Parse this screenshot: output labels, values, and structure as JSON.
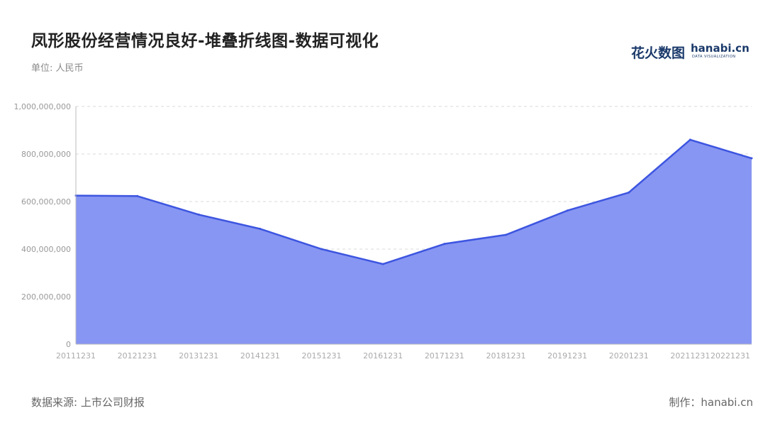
{
  "title": "凤形股份经营情况良好-堆叠折线图-数据可视化",
  "unit_label": "单位: 人民币",
  "source_label": "数据来源: 上市公司财报",
  "maker_label": "制作：hanabi.cn",
  "logo": {
    "cn": "花火数图",
    "en": "hanabi.cn",
    "sub": "DATA VISUALIZATION"
  },
  "colors": {
    "area": "#8796f2",
    "line": "#3d55e0",
    "grid": "#d8d8d8",
    "axis": "#bbbbbb"
  },
  "chart_data": {
    "type": "area",
    "title": "凤形股份经营情况良好-堆叠折线图-数据可视化",
    "ylabel": "单位: 人民币",
    "ylim": [
      0,
      1000000000
    ],
    "yticks": [
      0,
      200000000,
      400000000,
      600000000,
      800000000,
      1000000000
    ],
    "ytick_labels": [
      "0",
      "200,000,000",
      "400,000,000",
      "600,000,000",
      "800,000,000",
      "1,000,000,000"
    ],
    "grid": true,
    "categories": [
      "20111231",
      "20121231",
      "20131231",
      "20141231",
      "20151231",
      "20161231",
      "20171231",
      "20181231",
      "20191231",
      "20201231",
      "20211231",
      "20221231"
    ],
    "series": [
      {
        "values": [
          625000000,
          623000000,
          545000000,
          485000000,
          400000000,
          337000000,
          422000000,
          460000000,
          562000000,
          638000000,
          860000000,
          782000000
        ]
      }
    ]
  }
}
